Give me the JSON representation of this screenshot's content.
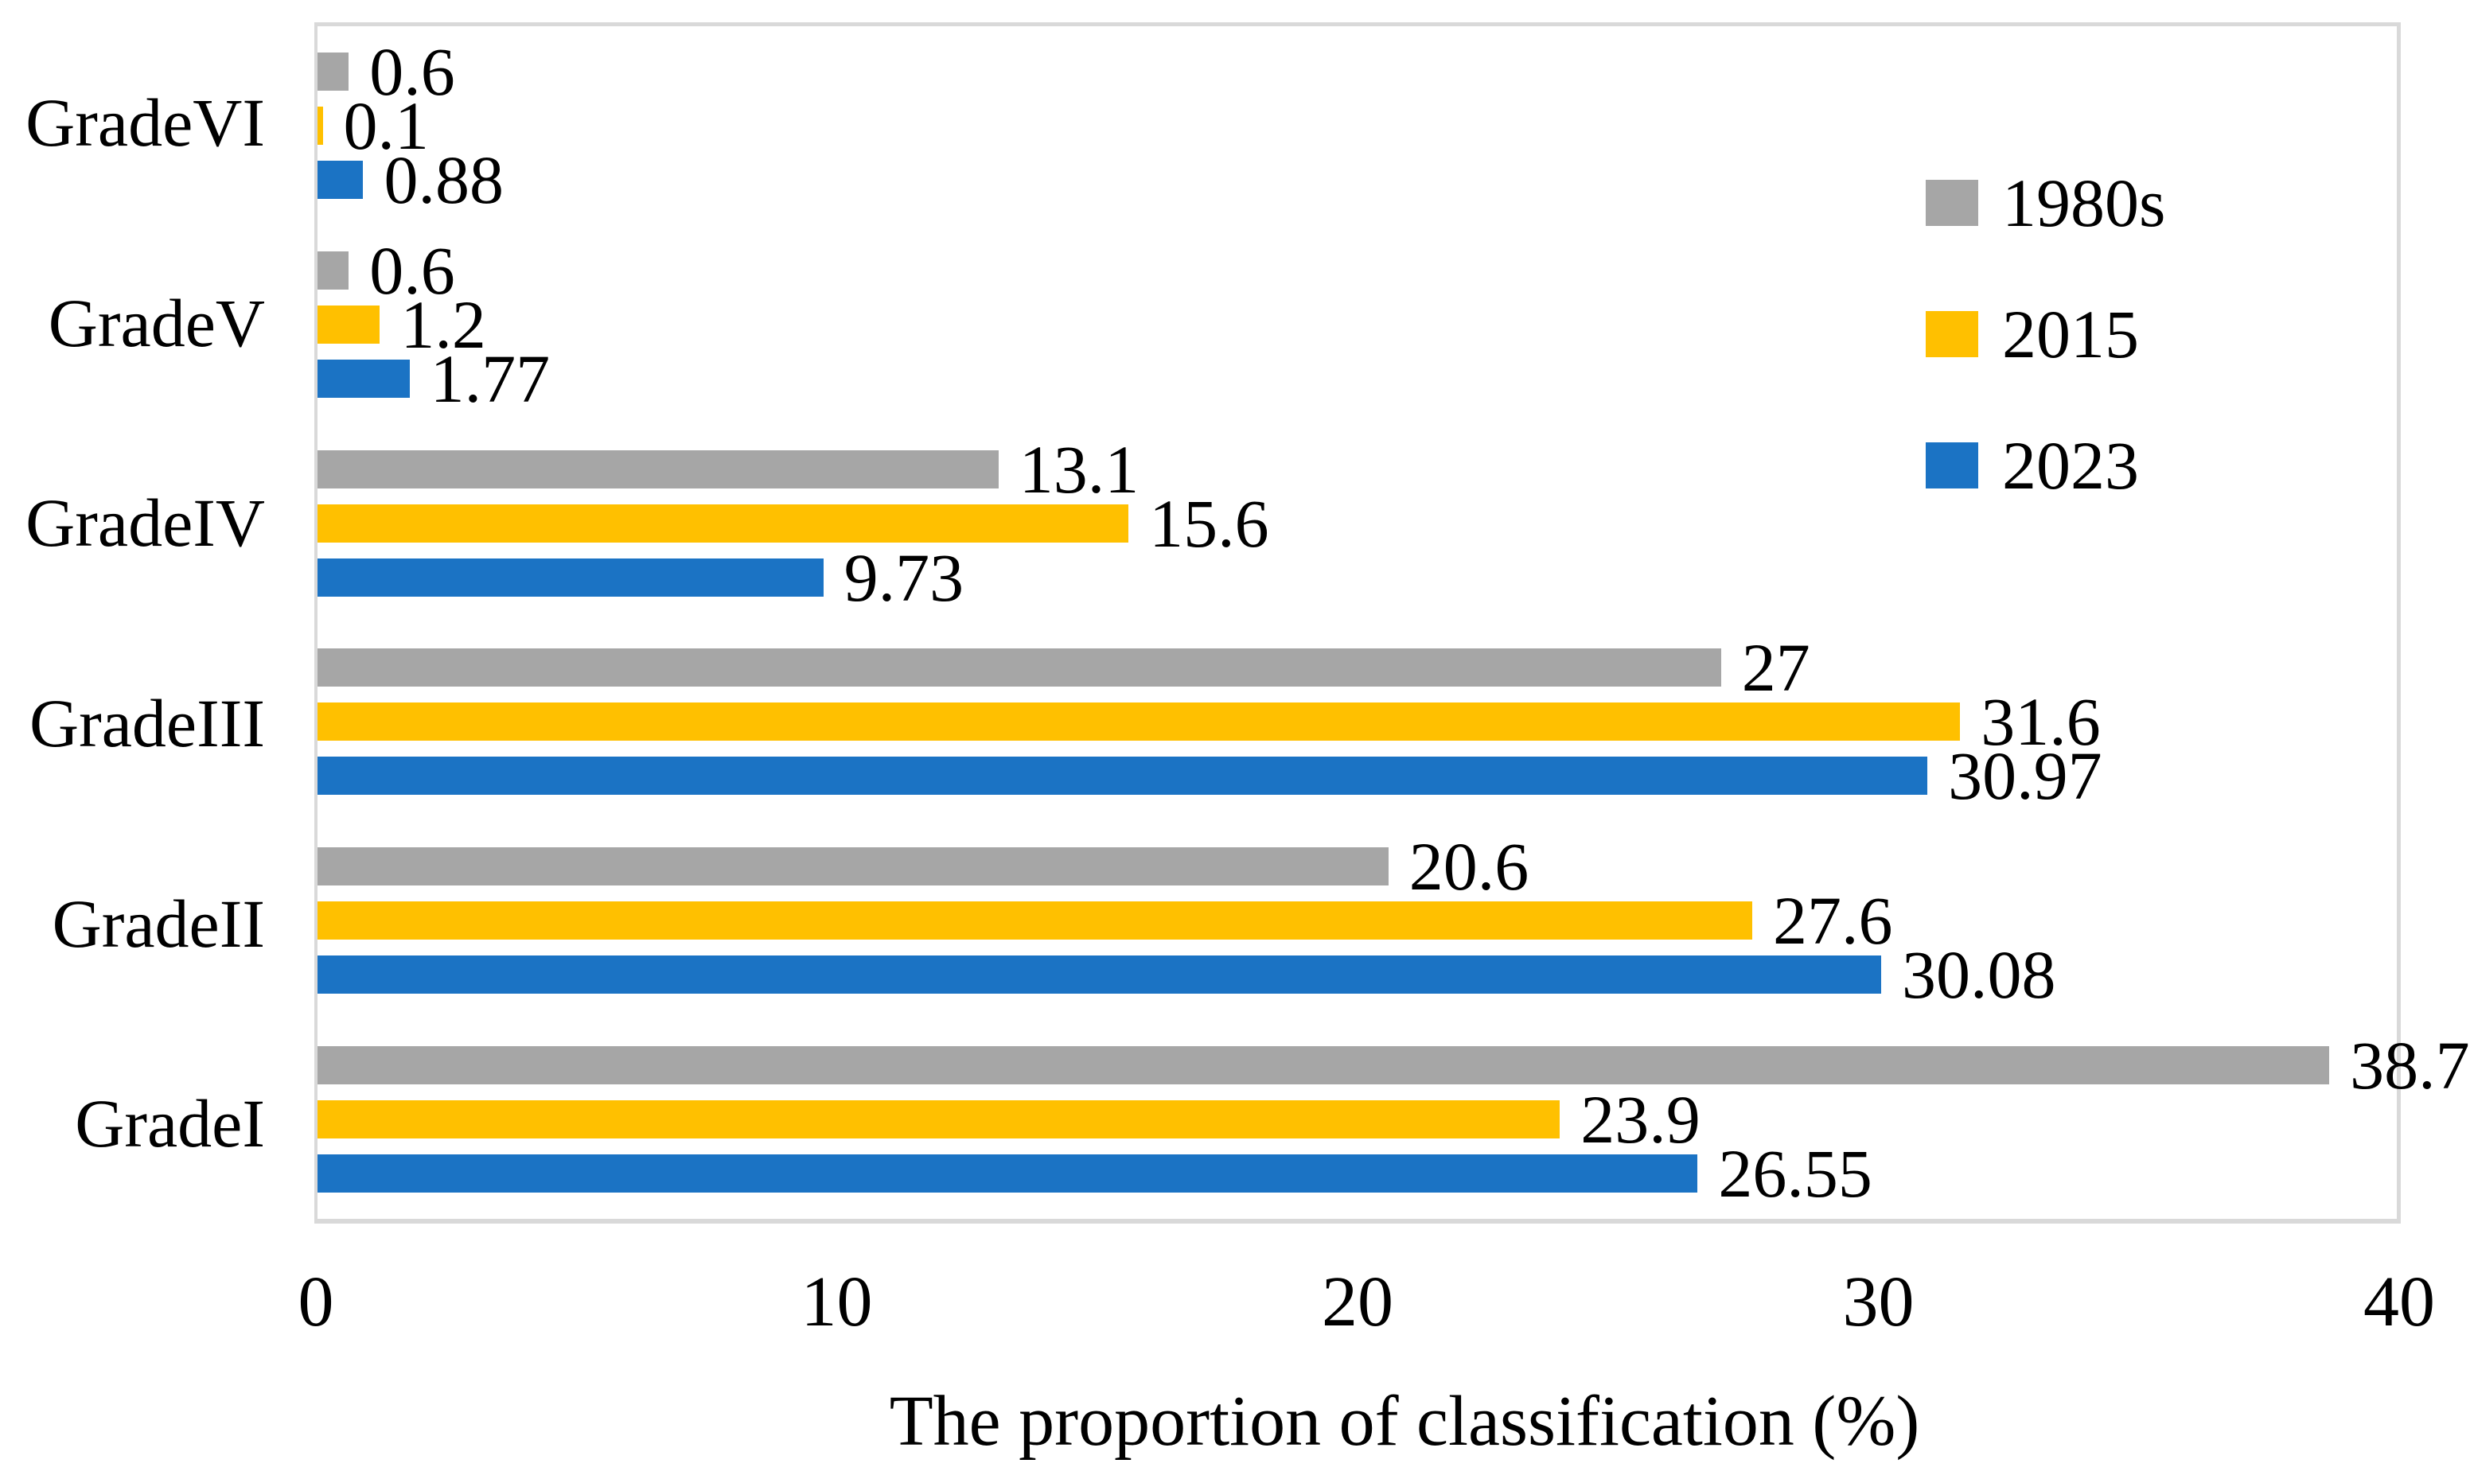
{
  "chart_data": {
    "type": "bar",
    "orientation": "horizontal",
    "title": "",
    "categories": [
      "GradeVI",
      "GradeV",
      "GradeIV",
      "GradeIII",
      "GradeII",
      "GradeI"
    ],
    "series": [
      {
        "name": "1980s",
        "color": "#A6A6A6",
        "values": [
          0.6,
          0.6,
          13.1,
          27,
          20.6,
          38.7
        ],
        "labels": [
          "0.6",
          "0.6",
          "13.1",
          "27",
          "20.6",
          "38.7"
        ]
      },
      {
        "name": "2015",
        "color": "#FFC000",
        "values": [
          0.1,
          1.2,
          15.6,
          31.6,
          27.6,
          23.9
        ],
        "labels": [
          "0.1",
          "1.2",
          "15.6",
          "31.6",
          "27.6",
          "23.9"
        ]
      },
      {
        "name": "2023",
        "color": "#1B73C4",
        "values": [
          0.88,
          1.77,
          9.73,
          30.97,
          30.08,
          26.55
        ],
        "labels": [
          "0.88",
          "1.77",
          "9.73",
          "30.97",
          "30.08",
          "26.55"
        ]
      }
    ],
    "xlabel": "The proportion of classification (%)",
    "ylabel": "",
    "xlim": [
      0,
      40
    ],
    "x_ticks": [
      "0",
      "10",
      "20",
      "30",
      "40"
    ],
    "grid": false,
    "legend_position": "inside-top-right",
    "axis_color": "#D9D9D9",
    "text_color": "#000000",
    "background_color": "#FFFFFF"
  }
}
